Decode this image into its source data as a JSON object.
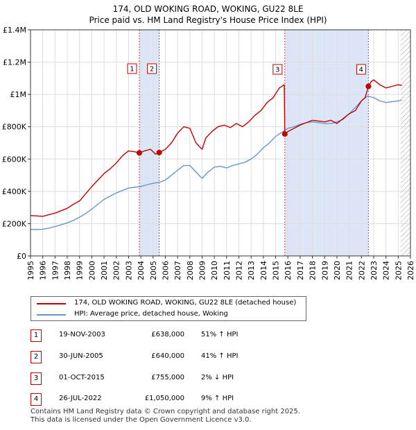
{
  "title": "174, OLD WOKING ROAD, WOKING, GU22 8LE",
  "subtitle": "Price paid vs. HM Land Registry's House Price Index (HPI)",
  "colors": {
    "property": "#c00000",
    "hpi": "#6a95c8",
    "shade": "#dde6f7",
    "grid": "#dddddd"
  },
  "chart_data": {
    "type": "line",
    "title": "174, OLD WOKING ROAD, WOKING, GU22 8LE",
    "subtitle": "Price paid vs. HM Land Registry's House Price Index (HPI)",
    "xlim": [
      1995,
      2026
    ],
    "ylim": [
      0,
      1400000
    ],
    "x_ticks": [
      "1995",
      "1996",
      "1997",
      "1998",
      "1999",
      "2000",
      "2001",
      "2002",
      "2003",
      "2004",
      "2005",
      "2006",
      "2007",
      "2008",
      "2009",
      "2010",
      "2011",
      "2012",
      "2013",
      "2014",
      "2015",
      "2016",
      "2017",
      "2018",
      "2019",
      "2020",
      "2021",
      "2022",
      "2023",
      "2024",
      "2025",
      "2026"
    ],
    "y_ticks": [
      {
        "value": 0,
        "label": "£0"
      },
      {
        "value": 200000,
        "label": "£200K"
      },
      {
        "value": 400000,
        "label": "£400K"
      },
      {
        "value": 600000,
        "label": "£600K"
      },
      {
        "value": 800000,
        "label": "£800K"
      },
      {
        "value": 1000000,
        "label": "£1M"
      },
      {
        "value": 1200000,
        "label": "£1.2M"
      },
      {
        "value": 1400000,
        "label": "£1.4M"
      }
    ],
    "grid": true,
    "shaded_ranges": [
      [
        2003.88,
        2005.5
      ],
      [
        2015.75,
        2022.57
      ]
    ],
    "hatched_range": [
      2025.2,
      2026
    ],
    "series": [
      {
        "name": "174, OLD WOKING ROAD, WOKING, GU22 8LE (detached house)",
        "color": "#c00000",
        "x": [
          1995,
          1995.5,
          1996,
          1996.5,
          1997,
          1997.5,
          1998,
          1998.5,
          1999,
          1999.5,
          2000,
          2000.5,
          2001,
          2001.5,
          2002,
          2002.5,
          2003,
          2003.5,
          2003.88,
          2004.3,
          2004.8,
          2005.2,
          2005.5,
          2006,
          2006.5,
          2007,
          2007.5,
          2008,
          2008.5,
          2009,
          2009.3,
          2009.8,
          2010.3,
          2010.8,
          2011.3,
          2011.8,
          2012.3,
          2012.8,
          2013.3,
          2013.8,
          2014.3,
          2014.8,
          2015.3,
          2015.7,
          2015.75,
          2016,
          2016.5,
          2017,
          2017.5,
          2018,
          2018.5,
          2019,
          2019.5,
          2020,
          2020.5,
          2021,
          2021.5,
          2022,
          2022.3,
          2022.57,
          2022.8,
          2023,
          2023.5,
          2024,
          2024.5,
          2025,
          2025.3
        ],
        "values": [
          250000,
          248000,
          245000,
          255000,
          265000,
          280000,
          295000,
          320000,
          340000,
          385000,
          430000,
          470000,
          510000,
          540000,
          575000,
          620000,
          650000,
          645000,
          638000,
          650000,
          660000,
          630000,
          640000,
          660000,
          700000,
          760000,
          800000,
          790000,
          700000,
          660000,
          730000,
          770000,
          800000,
          810000,
          795000,
          820000,
          800000,
          830000,
          870000,
          900000,
          950000,
          980000,
          1040000,
          1060000,
          755000,
          770000,
          790000,
          810000,
          825000,
          840000,
          835000,
          830000,
          840000,
          820000,
          850000,
          880000,
          900000,
          960000,
          980000,
          1050000,
          1080000,
          1090000,
          1060000,
          1040000,
          1050000,
          1060000,
          1055000
        ]
      },
      {
        "name": "HPI: Average price, detached house, Woking",
        "color": "#6a95c8",
        "x": [
          1995,
          1995.5,
          1996,
          1996.5,
          1997,
          1997.5,
          1998,
          1998.5,
          1999,
          1999.5,
          2000,
          2000.5,
          2001,
          2001.5,
          2002,
          2002.5,
          2003,
          2003.5,
          2004,
          2004.5,
          2005,
          2005.5,
          2006,
          2006.5,
          2007,
          2007.5,
          2008,
          2008.5,
          2009,
          2009.5,
          2010,
          2010.5,
          2011,
          2011.5,
          2012,
          2012.5,
          2013,
          2013.5,
          2014,
          2014.5,
          2015,
          2015.5,
          2016,
          2016.5,
          2017,
          2017.5,
          2018,
          2018.5,
          2019,
          2019.5,
          2020,
          2020.5,
          2021,
          2021.5,
          2022,
          2022.5,
          2023,
          2023.5,
          2024,
          2024.5,
          2025,
          2025.3
        ],
        "values": [
          165000,
          163000,
          165000,
          172000,
          182000,
          193000,
          205000,
          220000,
          240000,
          262000,
          290000,
          320000,
          350000,
          370000,
          390000,
          405000,
          420000,
          425000,
          430000,
          440000,
          450000,
          455000,
          470000,
          500000,
          530000,
          560000,
          560000,
          520000,
          480000,
          520000,
          550000,
          555000,
          545000,
          560000,
          570000,
          580000,
          600000,
          630000,
          670000,
          700000,
          740000,
          765000,
          790000,
          800000,
          815000,
          825000,
          830000,
          825000,
          820000,
          820000,
          830000,
          845000,
          880000,
          920000,
          960000,
          990000,
          980000,
          960000,
          950000,
          955000,
          960000,
          965000
        ]
      }
    ],
    "sales": [
      {
        "num": "1",
        "x": 2003.88,
        "value": 638000
      },
      {
        "num": "2",
        "x": 2005.5,
        "value": 640000
      },
      {
        "num": "3",
        "x": 2015.75,
        "value": 755000
      },
      {
        "num": "4",
        "x": 2022.57,
        "value": 1050000
      }
    ]
  },
  "legend": {
    "property": "174, OLD WOKING ROAD, WOKING, GU22 8LE (detached house)",
    "hpi": "HPI: Average price, detached house, Woking"
  },
  "transactions": [
    {
      "num": "1",
      "date": "19-NOV-2003",
      "price": "£638,000",
      "pct": "51% ↑ HPI"
    },
    {
      "num": "2",
      "date": "30-JUN-2005",
      "price": "£640,000",
      "pct": "41% ↑ HPI"
    },
    {
      "num": "3",
      "date": "01-OCT-2015",
      "price": "£755,000",
      "pct": "2% ↓ HPI"
    },
    {
      "num": "4",
      "date": "26-JUL-2022",
      "price": "£1,050,000",
      "pct": "9% ↑ HPI"
    }
  ],
  "footer": {
    "line1": "Contains HM Land Registry data © Crown copyright and database right 2025.",
    "line2": "This data is licensed under the Open Government Licence v3.0."
  }
}
